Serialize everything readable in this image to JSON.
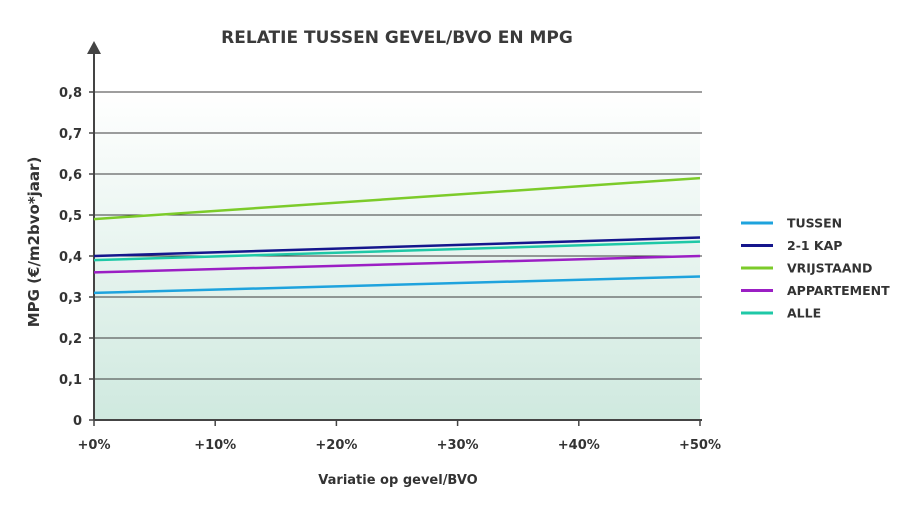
{
  "chart_data": {
    "type": "line",
    "title": "RELATIE TUSSEN GEVEL/BVO EN MPG",
    "xlabel": "Variatie op gevel/BVO",
    "ylabel": "MPG (€/m2bvo*jaar)",
    "x": [
      0,
      50
    ],
    "x_ticks": [
      "+0%",
      "+10%",
      "+20%",
      "+30%",
      "+40%",
      "+50%"
    ],
    "y_ticks": [
      "0",
      "0,1",
      "0,2",
      "0,3",
      "0,4",
      "0,5",
      "0,6",
      "0,7",
      "0,8"
    ],
    "ylim": [
      0,
      0.8
    ],
    "xlim": [
      0,
      50
    ],
    "grid": true,
    "legend_position": "right",
    "series": [
      {
        "name": "TUSSEN",
        "color": "#1ea3dd",
        "values": [
          0.31,
          0.35
        ]
      },
      {
        "name": "2-1 KAP",
        "color": "#15168c",
        "values": [
          0.4,
          0.445
        ]
      },
      {
        "name": "VRIJSTAAND",
        "color": "#7ccb2a",
        "values": [
          0.49,
          0.59
        ]
      },
      {
        "name": "APPARTEMENT",
        "color": "#9b1fc4",
        "values": [
          0.36,
          0.4
        ]
      },
      {
        "name": "ALLE",
        "color": "#1fc8a7",
        "values": [
          0.39,
          0.435
        ]
      }
    ]
  }
}
